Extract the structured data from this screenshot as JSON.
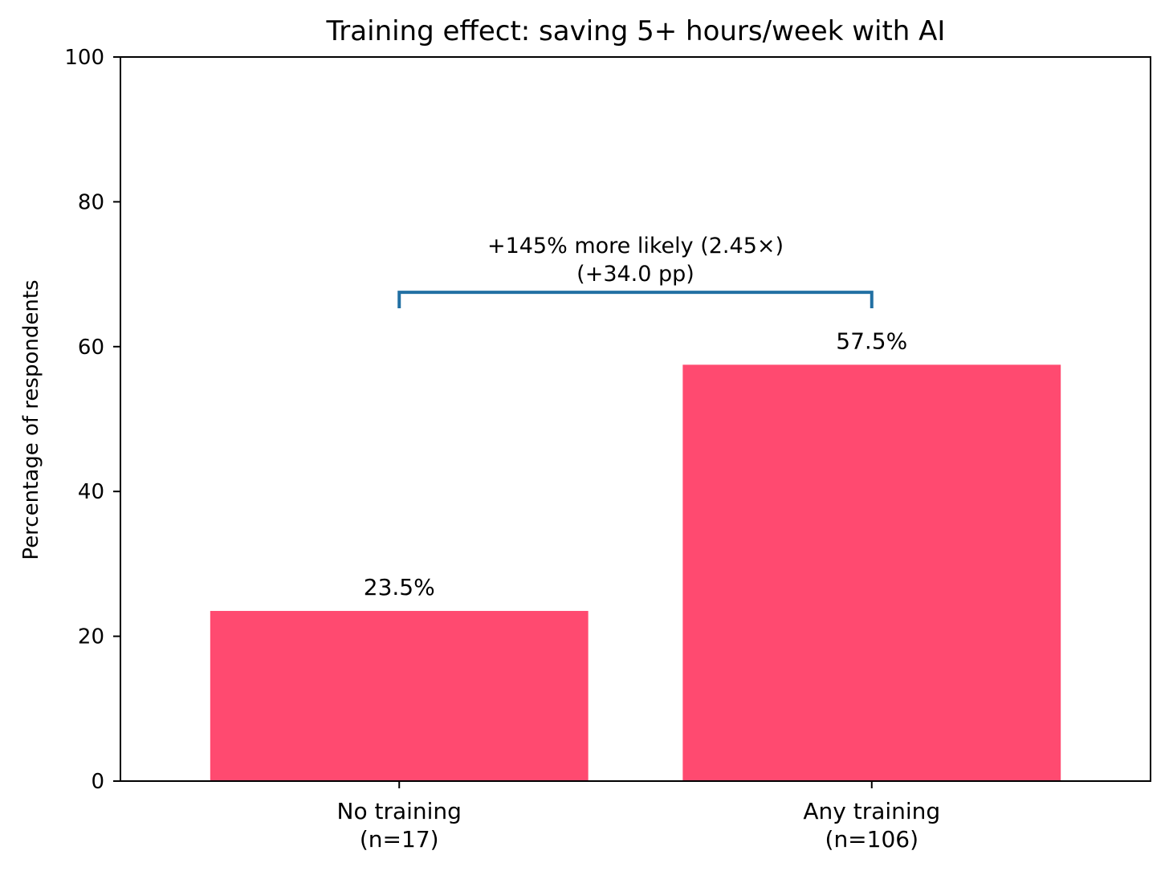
{
  "chart_data": {
    "type": "bar",
    "title": "Training effect: saving 5+ hours/week with AI",
    "ylabel": "Percentage of respondents",
    "xlabel": "",
    "ylim": [
      0,
      100
    ],
    "yticks": [
      "0",
      "20",
      "40",
      "60",
      "80",
      "100"
    ],
    "categories": [
      {
        "line1": "No training",
        "line2": "(n=17)"
      },
      {
        "line1": "Any training",
        "line2": "(n=106)"
      }
    ],
    "values": [
      23.5,
      57.5
    ],
    "value_labels": [
      "23.5%",
      "57.5%"
    ],
    "annotation": {
      "line1": "+145% more likely (2.45×)",
      "line2": "(+34.0 pp)",
      "bracket_level": 67.5,
      "bracket_tick_bottom": 65.3
    },
    "bar_color": "#ff4a70",
    "bracket_color": "#2270a3"
  }
}
